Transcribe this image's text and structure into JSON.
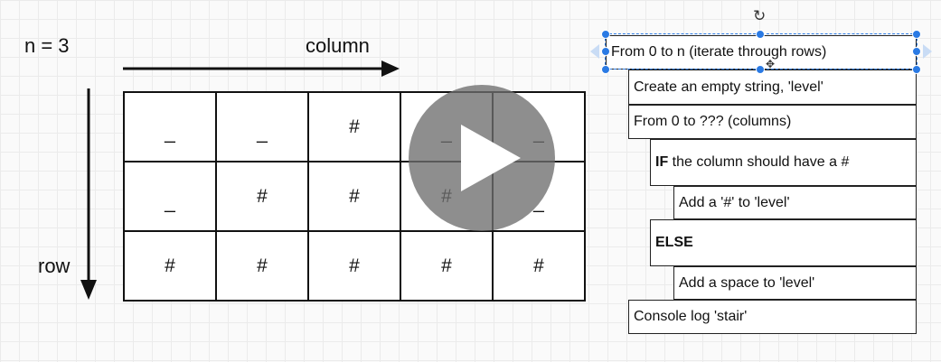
{
  "diagram": {
    "n_label": "n = 3",
    "column_label": "column",
    "row_label": "row",
    "grid": [
      [
        "_",
        "_",
        "#",
        "_",
        "_"
      ],
      [
        "_",
        "#",
        "#",
        "#",
        "_"
      ],
      [
        "#",
        "#",
        "#",
        "#",
        "#"
      ]
    ]
  },
  "flow": {
    "from_rows": "From 0 to n (iterate through rows)",
    "create_level": "Create an empty string, 'level'",
    "from_columns": "From 0 to ??? (columns)",
    "if_keyword": "IF",
    "if_rest": " the column should have a #",
    "add_hash": "Add a '#' to 'level'",
    "else_keyword": "ELSE",
    "add_space": "Add a space to 'level'",
    "console_log": "Console log 'stair'"
  },
  "colors": {
    "selection": "#2a7ae4",
    "play_overlay": "#6e6e6e"
  },
  "icons": [
    "rotate-icon",
    "move-icon",
    "play-icon"
  ]
}
